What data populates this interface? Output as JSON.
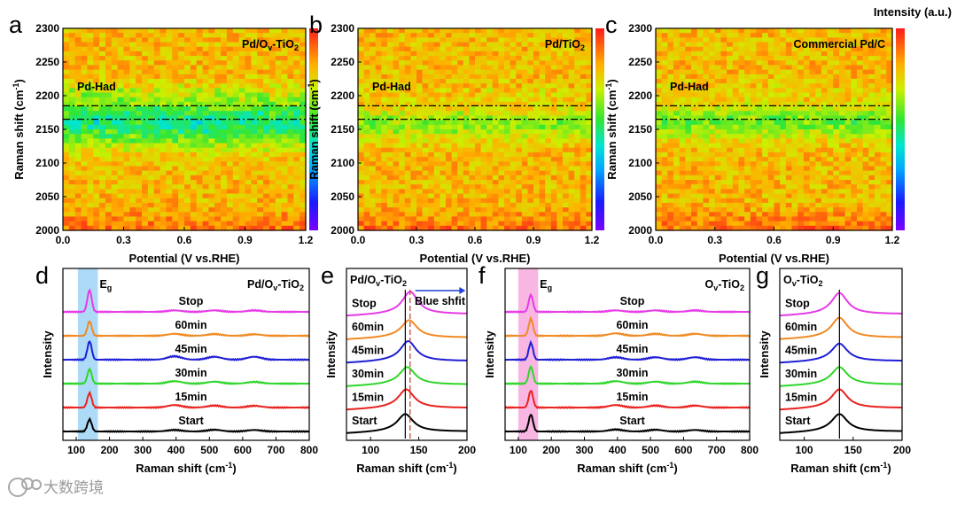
{
  "watermark": "大数跨境",
  "colorbar_title": "Intensity (a.u.)",
  "chart_data": [
    {
      "panel": "a",
      "type": "heatmap",
      "label": "Pd/Ov-TiO2",
      "title": "Pd/O",
      "title_sub": "v",
      "title_rest": "-TiO",
      "title_sub2": "2",
      "xlabel": "Potential (V vs.RHE)",
      "ylabel": "Raman shift (cm",
      "ylabel_sup": "-1",
      "ylabel_end": ")",
      "xlim": [
        0,
        1.2
      ],
      "ylim": [
        2000,
        2300
      ],
      "xticks": [
        "0.0",
        "0.3",
        "0.6",
        "0.9",
        "1.2"
      ],
      "yticks": [
        "2000",
        "2050",
        "2100",
        "2150",
        "2200",
        "2250",
        "2300"
      ],
      "annotation": "Pd-Had",
      "dashed_lines": [
        2165,
        2185
      ],
      "band_center": 2160,
      "band_width": 35,
      "band_strength": 0.95
    },
    {
      "panel": "b",
      "type": "heatmap",
      "label": "Pd/TiO2",
      "title": "Pd/TiO",
      "title_sub": "",
      "title_rest": "",
      "title_sub2": "2",
      "xlabel": "Potential (V vs.RHE)",
      "ylabel": "Raman shift (cm",
      "ylabel_sup": "-1",
      "ylabel_end": ")",
      "xlim": [
        0,
        1.2
      ],
      "ylim": [
        2000,
        2300
      ],
      "xticks": [
        "0.0",
        "0.3",
        "0.6",
        "0.9",
        "1.2"
      ],
      "yticks": [
        "2000",
        "2050",
        "2100",
        "2150",
        "2200",
        "2250",
        "2300"
      ],
      "annotation": "Pd-Had",
      "dashed_lines": [
        2165,
        2185
      ],
      "band_center": 2158,
      "band_width": 22,
      "band_strength": 0.5
    },
    {
      "panel": "c",
      "type": "heatmap",
      "label": "Commercial Pd/C",
      "title": "Commercial Pd/C",
      "title_sub": "",
      "title_rest": "",
      "title_sub2": "",
      "xlabel": "Potential (V vs.RHE)",
      "ylabel": "Raman shift (cm",
      "ylabel_sup": "-1",
      "ylabel_end": ")",
      "xlim": [
        0,
        1.2
      ],
      "ylim": [
        2000,
        2300
      ],
      "xticks": [
        "0.0",
        "0.3",
        "0.6",
        "0.9",
        "1.2"
      ],
      "yticks": [
        "2000",
        "2050",
        "2100",
        "2150",
        "2200",
        "2250",
        "2300"
      ],
      "annotation": "Pd-Had",
      "dashed_lines": [
        2165,
        2185
      ],
      "band_center": 2160,
      "band_width": 24,
      "band_strength": 0.6
    },
    {
      "panel": "d",
      "type": "line",
      "label": "Pd/Ov-TiO2",
      "title": "Pd/O",
      "title_sub": "v",
      "title_rest": "-TiO",
      "title_sub2": "2",
      "xlabel": "Raman shift (cm",
      "xlabel_sup": "-1",
      "xlabel_end": ")",
      "ylabel": "Intensity",
      "xlim": [
        60,
        800
      ],
      "xticks": [
        "100",
        "200",
        "300",
        "400",
        "500",
        "600",
        "700",
        "800"
      ],
      "highlight": {
        "label": "E",
        "label_sub": "g",
        "range": [
          105,
          165
        ],
        "color": "#9fd4f5"
      },
      "peak": 140,
      "series": [
        {
          "name": "Start",
          "color": "#000000",
          "values": [
            0.25,
            0.03,
            0.035,
            0.03
          ]
        },
        {
          "name": "15min",
          "color": "#e8231f",
          "values": [
            0.3,
            0.05,
            0.04,
            0.035
          ]
        },
        {
          "name": "30min",
          "color": "#2fd62a",
          "values": [
            0.3,
            0.05,
            0.04,
            0.035
          ]
        },
        {
          "name": "45min",
          "color": "#1f1fd6",
          "values": [
            0.38,
            0.07,
            0.06,
            0.06
          ]
        },
        {
          "name": "60min",
          "color": "#f08a24",
          "values": [
            0.3,
            0.04,
            0.035,
            0.03
          ]
        },
        {
          "name": "Stop",
          "color": "#e63be6",
          "values": [
            0.45,
            0.03,
            0.03,
            0.03
          ]
        }
      ]
    },
    {
      "panel": "e",
      "type": "line",
      "label": "Pd/Ov-TiO2",
      "title": "Pd/O",
      "title_sub": "v",
      "title_rest": "-TiO",
      "title_sub2": "2",
      "xlabel": "Raman shift (cm",
      "xlabel_sup": "-1",
      "xlabel_end": ")",
      "ylabel": "Intensity",
      "xlim": [
        75,
        200
      ],
      "xticks": [
        "100",
        "150",
        "200"
      ],
      "arrow_label": "Blue shfit",
      "ref_lines": [
        136,
        141
      ],
      "peaks": [
        136,
        137,
        138,
        139,
        140,
        141
      ],
      "series": [
        {
          "name": "Start",
          "color": "#000000",
          "height": 0.7
        },
        {
          "name": "15min",
          "color": "#e8231f",
          "height": 0.75
        },
        {
          "name": "30min",
          "color": "#2fd62a",
          "height": 0.7
        },
        {
          "name": "45min",
          "color": "#1f1fd6",
          "height": 0.8
        },
        {
          "name": "60min",
          "color": "#f08a24",
          "height": 0.7
        },
        {
          "name": "Stop",
          "color": "#e63be6",
          "height": 0.9
        }
      ]
    },
    {
      "panel": "f",
      "type": "line",
      "label": "Ov-TiO2",
      "title": "O",
      "title_sub": "v",
      "title_rest": "-TiO",
      "title_sub2": "2",
      "xlabel": "Raman shift (cm",
      "xlabel_sup": "-1",
      "xlabel_end": ")",
      "ylabel": "Intensity",
      "xlim": [
        60,
        800
      ],
      "xticks": [
        "100",
        "200",
        "300",
        "400",
        "500",
        "600",
        "700",
        "800"
      ],
      "highlight": {
        "label": "E",
        "label_sub": "g",
        "range": [
          100,
          160
        ],
        "color": "#f7a9de"
      },
      "peak": 138,
      "series": [
        {
          "name": "Start",
          "color": "#000000",
          "values": [
            0.35,
            0.04,
            0.035,
            0.03
          ]
        },
        {
          "name": "15min",
          "color": "#e8231f",
          "values": [
            0.35,
            0.05,
            0.04,
            0.04
          ]
        },
        {
          "name": "30min",
          "color": "#2fd62a",
          "values": [
            0.35,
            0.05,
            0.04,
            0.04
          ]
        },
        {
          "name": "45min",
          "color": "#1f1fd6",
          "values": [
            0.35,
            0.05,
            0.05,
            0.05
          ]
        },
        {
          "name": "60min",
          "color": "#f08a24",
          "values": [
            0.35,
            0.05,
            0.04,
            0.04
          ]
        },
        {
          "name": "Stop",
          "color": "#e63be6",
          "values": [
            0.35,
            0.03,
            0.03,
            0.03
          ]
        }
      ]
    },
    {
      "panel": "g",
      "type": "line",
      "label": "Ov-TiO2",
      "title": "O",
      "title_sub": "v",
      "title_rest": "-TiO",
      "title_sub2": "2",
      "xlabel": "Raman shift (cm",
      "xlabel_sup": "-1",
      "xlabel_end": ")",
      "ylabel": "Intensity",
      "xlim": [
        75,
        200
      ],
      "xticks": [
        "100",
        "150",
        "200"
      ],
      "ref_lines": [
        136
      ],
      "peaks": [
        136,
        136,
        136,
        136,
        136,
        136
      ],
      "series": [
        {
          "name": "Start",
          "color": "#000000",
          "height": 0.7
        },
        {
          "name": "15min",
          "color": "#e8231f",
          "height": 0.75
        },
        {
          "name": "30min",
          "color": "#2fd62a",
          "height": 0.7
        },
        {
          "name": "45min",
          "color": "#1f1fd6",
          "height": 0.7
        },
        {
          "name": "60min",
          "color": "#f08a24",
          "height": 0.8
        },
        {
          "name": "Stop",
          "color": "#e63be6",
          "height": 0.85
        }
      ]
    }
  ]
}
